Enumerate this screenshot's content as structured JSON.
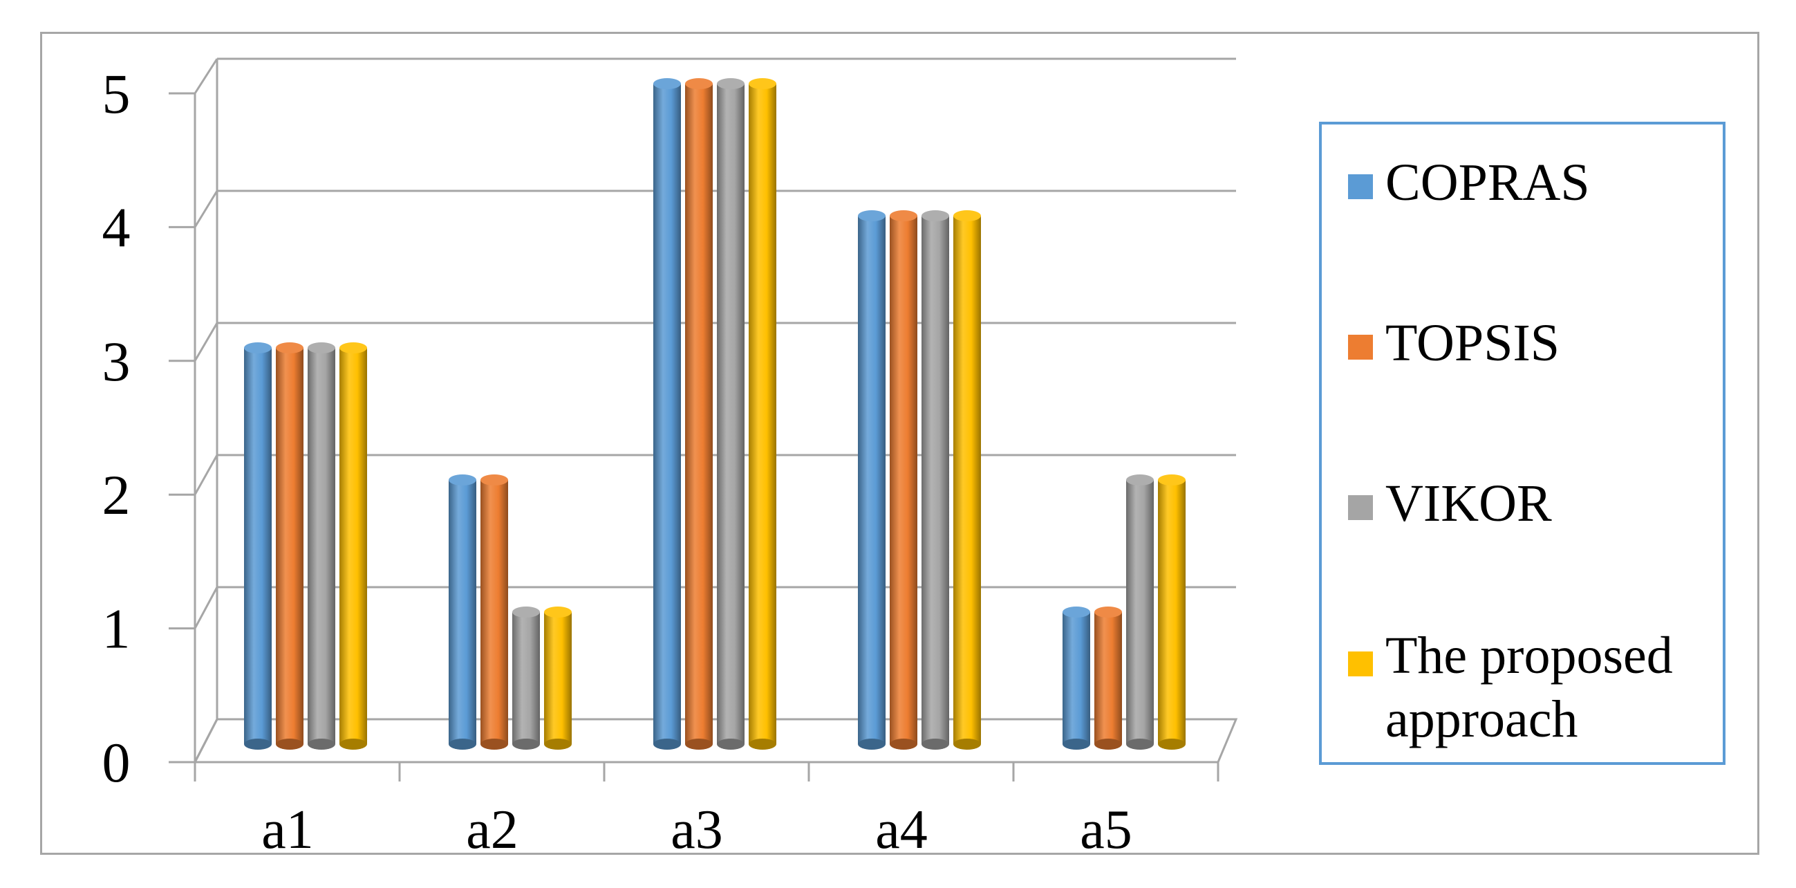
{
  "chart_data": {
    "type": "bar",
    "title": "",
    "xlabel": "",
    "ylabel": "",
    "categories": [
      "a1",
      "a2",
      "a3",
      "a4",
      "a5"
    ],
    "series": [
      {
        "name": "COPRAS",
        "values": [
          3,
          2,
          5,
          4,
          1
        ],
        "color": "#5b9bd5"
      },
      {
        "name": "TOPSIS",
        "values": [
          3,
          2,
          5,
          4,
          1
        ],
        "color": "#ed7d31"
      },
      {
        "name": "VIKOR",
        "values": [
          3,
          1,
          5,
          4,
          2
        ],
        "color": "#a5a5a5"
      },
      {
        "name": "The proposed approach",
        "values": [
          3,
          1,
          5,
          4,
          2
        ],
        "color": "#ffc000"
      }
    ],
    "yticks": [
      "0",
      "1",
      "2",
      "3",
      "4",
      "5"
    ],
    "ylim": [
      0,
      5
    ],
    "grid": true,
    "legend_position": "right",
    "style": "3d-cylinder"
  }
}
